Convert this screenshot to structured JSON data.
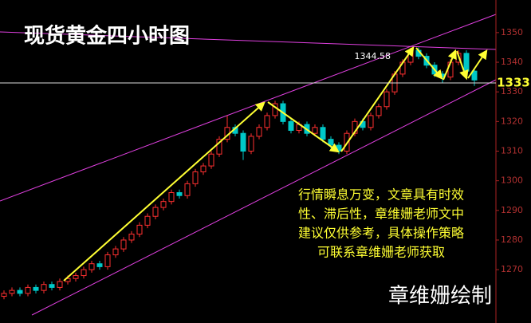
{
  "chart_data": {
    "type": "candlestick",
    "title": "现货黄金四小时图",
    "notes": [
      "行情瞬息万变，文章具有时效",
      "性、滞后性，章维姗老师文中",
      "建议仅供参考，具体操作策略",
      "可联系章维姗老师获取"
    ],
    "signature": "章维姗绘制",
    "high_label": 1344.58,
    "level": 1333,
    "up_color": "#ff3030",
    "down_color": "#00c8c8",
    "ylim": [
      1252,
      1361
    ],
    "yticks": [
      1270,
      1280,
      1290,
      1300,
      1310,
      1320,
      1330,
      1340,
      1350
    ],
    "open": [
      1261,
      1262,
      1263,
      1262,
      1264,
      1263,
      1265,
      1264,
      1266,
      1267,
      1268,
      1270,
      1272,
      1271,
      1275,
      1277,
      1280,
      1282,
      1285,
      1288,
      1291,
      1293,
      1296,
      1295,
      1299,
      1303,
      1305,
      1309,
      1314,
      1318,
      1316,
      1310,
      1315,
      1318,
      1322,
      1326,
      1320,
      1317,
      1319,
      1316,
      1318,
      1314,
      1312,
      1310,
      1316,
      1320,
      1318,
      1322,
      1325,
      1330,
      1336,
      1340,
      1344,
      1342,
      1339,
      1336,
      1335,
      1340,
      1343,
      1337
    ],
    "high": [
      1263,
      1264,
      1264,
      1265,
      1265,
      1266,
      1266,
      1267,
      1268,
      1269,
      1271,
      1273,
      1273,
      1276,
      1278,
      1281,
      1283,
      1286,
      1289,
      1292,
      1294,
      1297,
      1297,
      1300,
      1304,
      1306,
      1310,
      1315,
      1322,
      1319,
      1317,
      1316,
      1319,
      1323,
      1327,
      1327,
      1321,
      1320,
      1320,
      1319,
      1319,
      1315,
      1313,
      1317,
      1321,
      1321,
      1323,
      1326,
      1331,
      1337,
      1341,
      1345,
      1345,
      1343,
      1340,
      1337,
      1341,
      1344,
      1344,
      1338
    ],
    "low": [
      1260,
      1261,
      1261,
      1261,
      1262,
      1262,
      1263,
      1263,
      1265,
      1266,
      1267,
      1269,
      1270,
      1270,
      1274,
      1276,
      1279,
      1281,
      1284,
      1287,
      1290,
      1292,
      1294,
      1294,
      1298,
      1302,
      1304,
      1308,
      1313,
      1315,
      1307,
      1309,
      1314,
      1317,
      1321,
      1319,
      1316,
      1316,
      1315,
      1315,
      1313,
      1311,
      1309,
      1309,
      1315,
      1317,
      1317,
      1321,
      1324,
      1329,
      1335,
      1339,
      1341,
      1338,
      1335,
      1333,
      1334,
      1339,
      1336,
      1332
    ],
    "close": [
      1262,
      1263,
      1262,
      1264,
      1263,
      1265,
      1264,
      1266,
      1267,
      1268,
      1270,
      1272,
      1271,
      1275,
      1277,
      1280,
      1282,
      1285,
      1288,
      1291,
      1293,
      1296,
      1295,
      1299,
      1303,
      1305,
      1309,
      1314,
      1318,
      1316,
      1310,
      1315,
      1318,
      1322,
      1326,
      1320,
      1317,
      1319,
      1316,
      1318,
      1314,
      1312,
      1310,
      1316,
      1320,
      1318,
      1322,
      1325,
      1330,
      1336,
      1340,
      1344,
      1342,
      1339,
      1336,
      1335,
      1340,
      1343,
      1337,
      1334
    ]
  }
}
